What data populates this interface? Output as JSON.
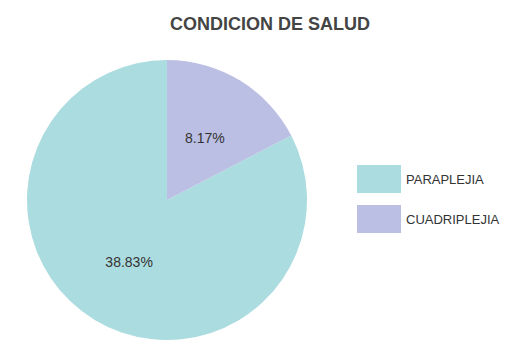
{
  "chart_data": {
    "type": "pie",
    "title": "CONDICION DE SALUD",
    "categories": [
      "PARAPLEJIA",
      "CUADRIPLEJIA"
    ],
    "values": [
      38.83,
      8.17
    ],
    "value_labels": [
      "38.83%",
      "8.17%"
    ],
    "colors": [
      "#abdcdf",
      "#bbbfe3"
    ],
    "legend": "right",
    "data_labels": true
  }
}
